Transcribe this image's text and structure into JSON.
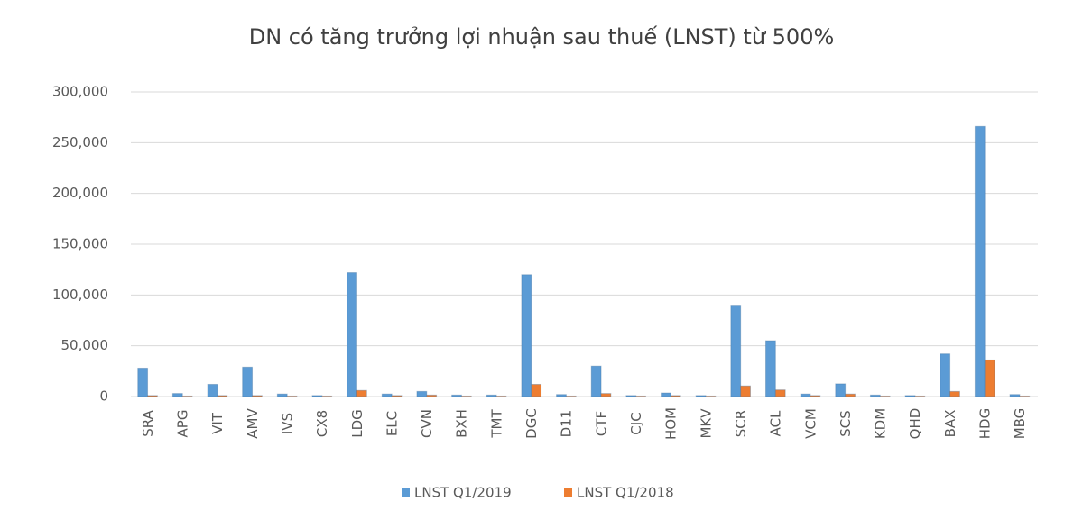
{
  "chart_data": {
    "type": "bar",
    "title": "DN có tăng trưởng lợi nhuận sau thuế (LNST) từ 500%",
    "categories": [
      "SRA",
      "APG",
      "VIT",
      "AMV",
      "IVS",
      "CX8",
      "LDG",
      "ELC",
      "CVN",
      "BXH",
      "TMT",
      "DGC",
      "D11",
      "CTF",
      "CJC",
      "HOM",
      "MKV",
      "SCR",
      "ACL",
      "VCM",
      "SCS",
      "KDM",
      "QHD",
      "BAX",
      "HDG",
      "MBG"
    ],
    "series": [
      {
        "name": "LNST Q1/2019",
        "color": "#5b9bd5",
        "values": [
          28000,
          3000,
          12000,
          29000,
          2500,
          1000,
          122000,
          2500,
          5000,
          1500,
          1500,
          120000,
          2000,
          30000,
          1000,
          3500,
          1000,
          90000,
          55000,
          2500,
          12500,
          1500,
          1000,
          42000,
          266000,
          2000
        ]
      },
      {
        "name": "LNST Q1/2018",
        "color": "#ed7d31",
        "values": [
          1000,
          500,
          1000,
          1000,
          500,
          500,
          6000,
          1000,
          1500,
          500,
          500,
          12000,
          500,
          3000,
          500,
          1000,
          500,
          10500,
          6500,
          1000,
          2500,
          500,
          500,
          5000,
          36000,
          500
        ]
      }
    ],
    "ylim": [
      0,
      300000
    ],
    "yticks": [
      0,
      {
        "value": 50000,
        "label": "50,000"
      },
      {
        "value": 100000,
        "label": "100,000"
      },
      {
        "value": 150000,
        "label": "150,000"
      },
      {
        "value": 200000,
        "label": "200,000"
      },
      {
        "value": 250000,
        "label": "250,000"
      },
      {
        "value": 300000,
        "label": "300,000"
      }
    ],
    "grid": true,
    "legend": "bottom"
  }
}
